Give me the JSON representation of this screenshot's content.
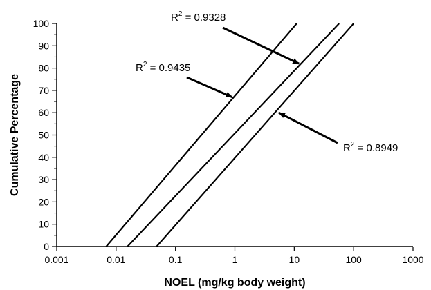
{
  "chart_data": {
    "type": "line",
    "xlabel": "NOEL (mg/kg body weight)",
    "ylabel": "Cumulative Percentage",
    "x_scale": "log",
    "xlim": [
      0.001,
      1000
    ],
    "ylim": [
      0,
      100
    ],
    "x_ticks": [
      0.001,
      0.01,
      0.1,
      1,
      10,
      100,
      1000
    ],
    "x_tick_labels": [
      "0.001",
      "0.01",
      "0.1",
      "1",
      "10",
      "100",
      "1000"
    ],
    "y_ticks": [
      0,
      10,
      20,
      30,
      40,
      50,
      60,
      70,
      80,
      90,
      100
    ],
    "y_tick_labels": [
      "0",
      "10",
      "20",
      "30",
      "40",
      "50",
      "60",
      "70",
      "80",
      "90",
      "100"
    ],
    "grid": false,
    "legend": "none",
    "series": [
      {
        "x": [
          0.0068,
          11
        ],
        "y": [
          0,
          100
        ]
      },
      {
        "x": [
          0.0155,
          57
        ],
        "y": [
          0,
          100
        ]
      },
      {
        "x": [
          0.048,
          100
        ],
        "y": [
          0,
          100
        ]
      }
    ],
    "annotations": [
      {
        "text_base": "R",
        "sup": "2",
        "text_rest": " = 0.9435",
        "arrow_to": [
          0.9,
          67
        ]
      },
      {
        "text_base": "R",
        "sup": "2",
        "text_rest": " = 0.9328",
        "arrow_to": [
          12,
          82
        ]
      },
      {
        "text_base": "R",
        "sup": "2",
        "text_rest": " = 0.8949",
        "arrow_to": [
          5.5,
          60
        ]
      }
    ]
  }
}
